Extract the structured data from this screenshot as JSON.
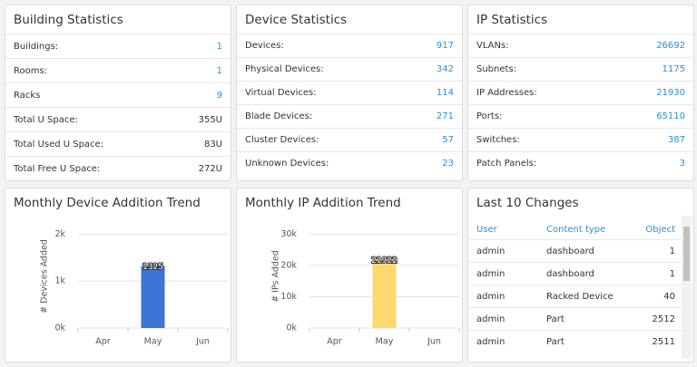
{
  "panels": [
    {
      "title": "Building Statistics",
      "rows": [
        {
          "label": "Buildings:",
          "value": "1"
        },
        {
          "label": "Rooms:",
          "value": "1"
        },
        {
          "label": "Racks",
          "value": "9"
        },
        {
          "label": "Total U Space:",
          "value": "355U"
        },
        {
          "label": "Total Used U Space:",
          "value": "83U"
        },
        {
          "label": "Total Free U Space:",
          "value": "272U"
        }
      ]
    },
    {
      "title": "Device Statistics",
      "rows": [
        {
          "label": "Devices:",
          "value": "917"
        },
        {
          "label": "Physical Devices:",
          "value": "342"
        },
        {
          "label": "Virtual Devices:",
          "value": "114"
        },
        {
          "label": "Blade Devices:",
          "value": "271"
        },
        {
          "label": "Cluster Devices:",
          "value": "57"
        },
        {
          "label": "Unknown Devices:",
          "value": "23"
        }
      ]
    },
    {
      "title": "IP Statistics",
      "rows": [
        {
          "label": "VLANs:",
          "value": "26692"
        },
        {
          "label": "Subnets:",
          "value": "1175"
        },
        {
          "label": "IP Addresses:",
          "value": "21930"
        },
        {
          "label": "Ports:",
          "value": "65110"
        },
        {
          "label": "Switches:",
          "value": "387"
        },
        {
          "label": "Patch Panels:",
          "value": "3"
        }
      ]
    }
  ],
  "charts": [
    {
      "type": "bar",
      "title": "Monthly Device Addition Trend",
      "y_label": "# Devices Added",
      "categories": [
        "Apr",
        "May",
        "Jun"
      ],
      "values": [
        null,
        1325,
        null
      ],
      "color": "#3e73d8",
      "ylim": [
        0,
        2200
      ],
      "yticks": [
        {
          "value": 0,
          "label": "0k"
        },
        {
          "value": 1000,
          "label": "1k"
        },
        {
          "value": 2000,
          "label": "2k"
        }
      ],
      "grid": true
    },
    {
      "type": "bar",
      "title": "Monthly IP Addition Trend",
      "y_label": "# IPs Added",
      "categories": [
        "Apr",
        "May",
        "Jun"
      ],
      "values": [
        null,
        21922,
        null
      ],
      "color": "#fdd86e",
      "ylim": [
        0,
        33000
      ],
      "yticks": [
        {
          "value": 0,
          "label": "0k"
        },
        {
          "value": 10000,
          "label": "10k"
        },
        {
          "value": 20000,
          "label": "20k"
        },
        {
          "value": 30000,
          "label": "30k"
        }
      ],
      "grid": true
    }
  ],
  "changes": {
    "title": "Last 10 Changes",
    "columns": [
      "User",
      "Content type",
      "Object"
    ],
    "rows": [
      [
        "admin",
        "dashboard",
        "1"
      ],
      [
        "admin",
        "dashboard",
        "1"
      ],
      [
        "admin",
        "Racked Device",
        "40"
      ],
      [
        "admin",
        "Part",
        "2512"
      ],
      [
        "admin",
        "Part",
        "2511"
      ]
    ]
  }
}
